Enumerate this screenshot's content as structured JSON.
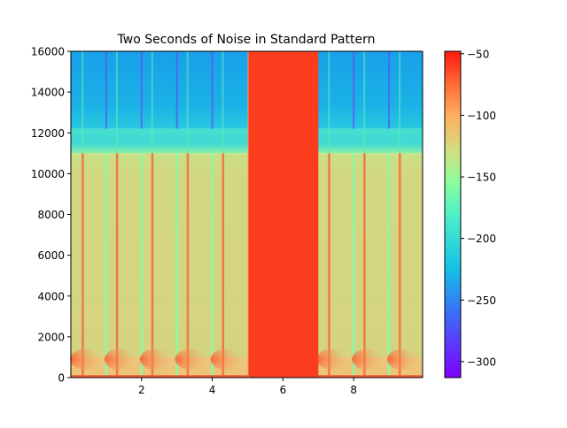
{
  "chart_data": {
    "type": "heatmap",
    "title": "Two Seconds of Noise in Standard Pattern",
    "xlabel": "",
    "ylabel": "",
    "xlim": [
      0,
      9.95
    ],
    "ylim": [
      0,
      16000
    ],
    "xticks": [
      2,
      4,
      6,
      8
    ],
    "xtick_labels": [
      "2",
      "4",
      "6",
      "8"
    ],
    "yticks": [
      0,
      2000,
      4000,
      6000,
      8000,
      10000,
      12000,
      14000,
      16000
    ],
    "ytick_labels": [
      "0",
      "2000",
      "4000",
      "6000",
      "8000",
      "10000",
      "12000",
      "14000",
      "16000"
    ],
    "colorbar": {
      "range": [
        -313,
        -48
      ],
      "ticks": [
        -50,
        -100,
        -150,
        -200,
        -250,
        -300
      ],
      "tick_labels": [
        "−50",
        "−100",
        "−150",
        "−200",
        "−250",
        "−300"
      ],
      "colormap": "rainbow"
    },
    "noise_block": {
      "start": 5,
      "end": 7,
      "level_db": -60
    },
    "impulse_times": [
      0.33,
      1.3,
      2.3,
      3.3,
      4.3,
      7.3,
      8.3,
      9.3
    ],
    "boundary_times": [
      1.0,
      2.0,
      3.0,
      4.0,
      8.0,
      9.0
    ],
    "bands": [
      {
        "from_hz": 12200,
        "to_hz": 16000,
        "level_db": -240
      },
      {
        "from_hz": 11000,
        "to_hz": 12200,
        "level_db": -215
      },
      {
        "from_hz": 1000,
        "to_hz": 11000,
        "level_db": -140
      },
      {
        "from_hz": 0,
        "to_hz": 1000,
        "level_db": -125
      }
    ]
  }
}
